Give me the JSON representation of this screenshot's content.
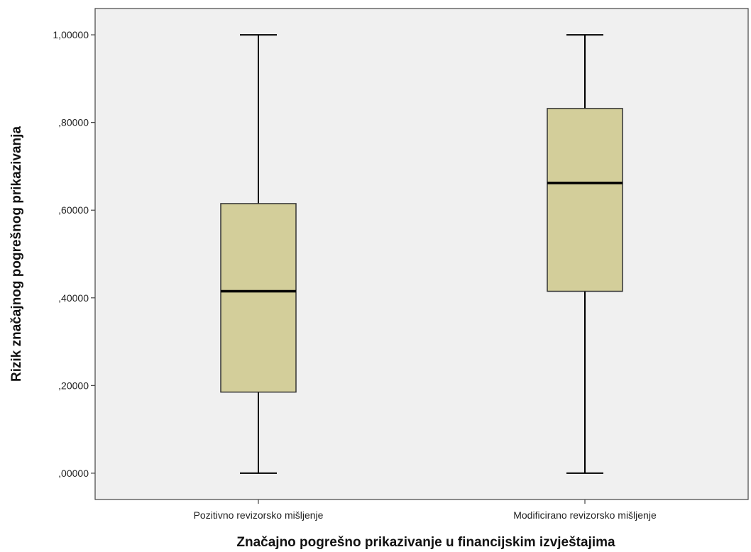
{
  "chart_data": {
    "type": "boxplot",
    "title": "",
    "xlabel": "Značajno pogrešno prikazivanje u financijskim izvještajima",
    "ylabel": "Rizik značajnog pogrešnog prikazivanja",
    "ylim": [
      -0.06,
      1.06
    ],
    "yticks": [
      0.0,
      0.2,
      0.4,
      0.6,
      0.8,
      1.0
    ],
    "ytick_labels": [
      ",00000",
      ",20000",
      ",40000",
      ",60000",
      ",80000",
      "1,00000"
    ],
    "categories": [
      "Pozitivno revizorsko mišljenje",
      "Modificirano revizorsko mišljenje"
    ],
    "boxes": [
      {
        "min": 0.0,
        "q1": 0.185,
        "median": 0.415,
        "q3": 0.615,
        "max": 1.0
      },
      {
        "min": 0.0,
        "q1": 0.415,
        "median": 0.662,
        "q3": 0.832,
        "max": 1.0
      }
    ],
    "grid": false,
    "colors": {
      "plot_bg": "#f0f0f0",
      "box_fill": "#d3ce9a",
      "box_stroke": "#333333",
      "line": "#000000"
    }
  }
}
